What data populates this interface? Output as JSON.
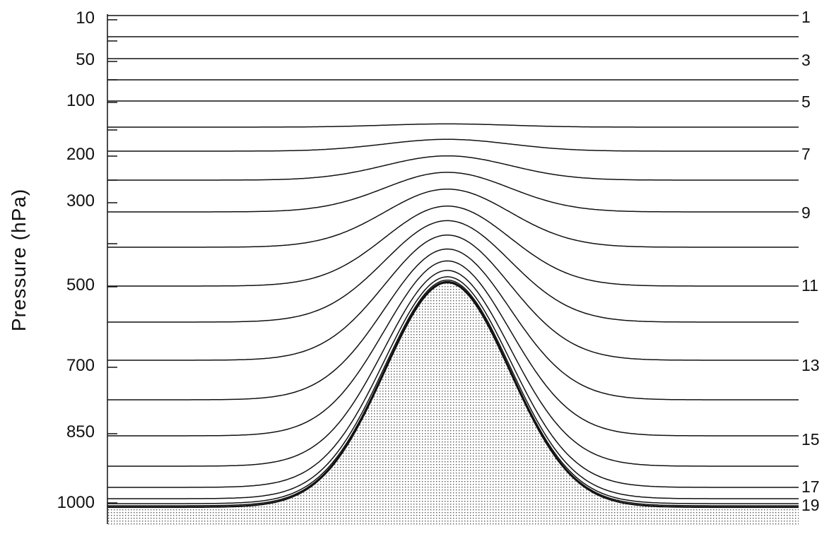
{
  "y_axis": {
    "title": "Pressure  (hPa)",
    "ticks": [
      "10",
      "50",
      "100",
      "200",
      "300",
      "500",
      "700",
      "850",
      "1000"
    ]
  },
  "levels": {
    "labels": [
      "1",
      "3",
      "5",
      "7",
      "9",
      "11",
      "13",
      "15",
      "17",
      "19"
    ]
  },
  "colors": {
    "line": "#111111",
    "ground_dot": "#555555",
    "background": "#ffffff"
  }
}
